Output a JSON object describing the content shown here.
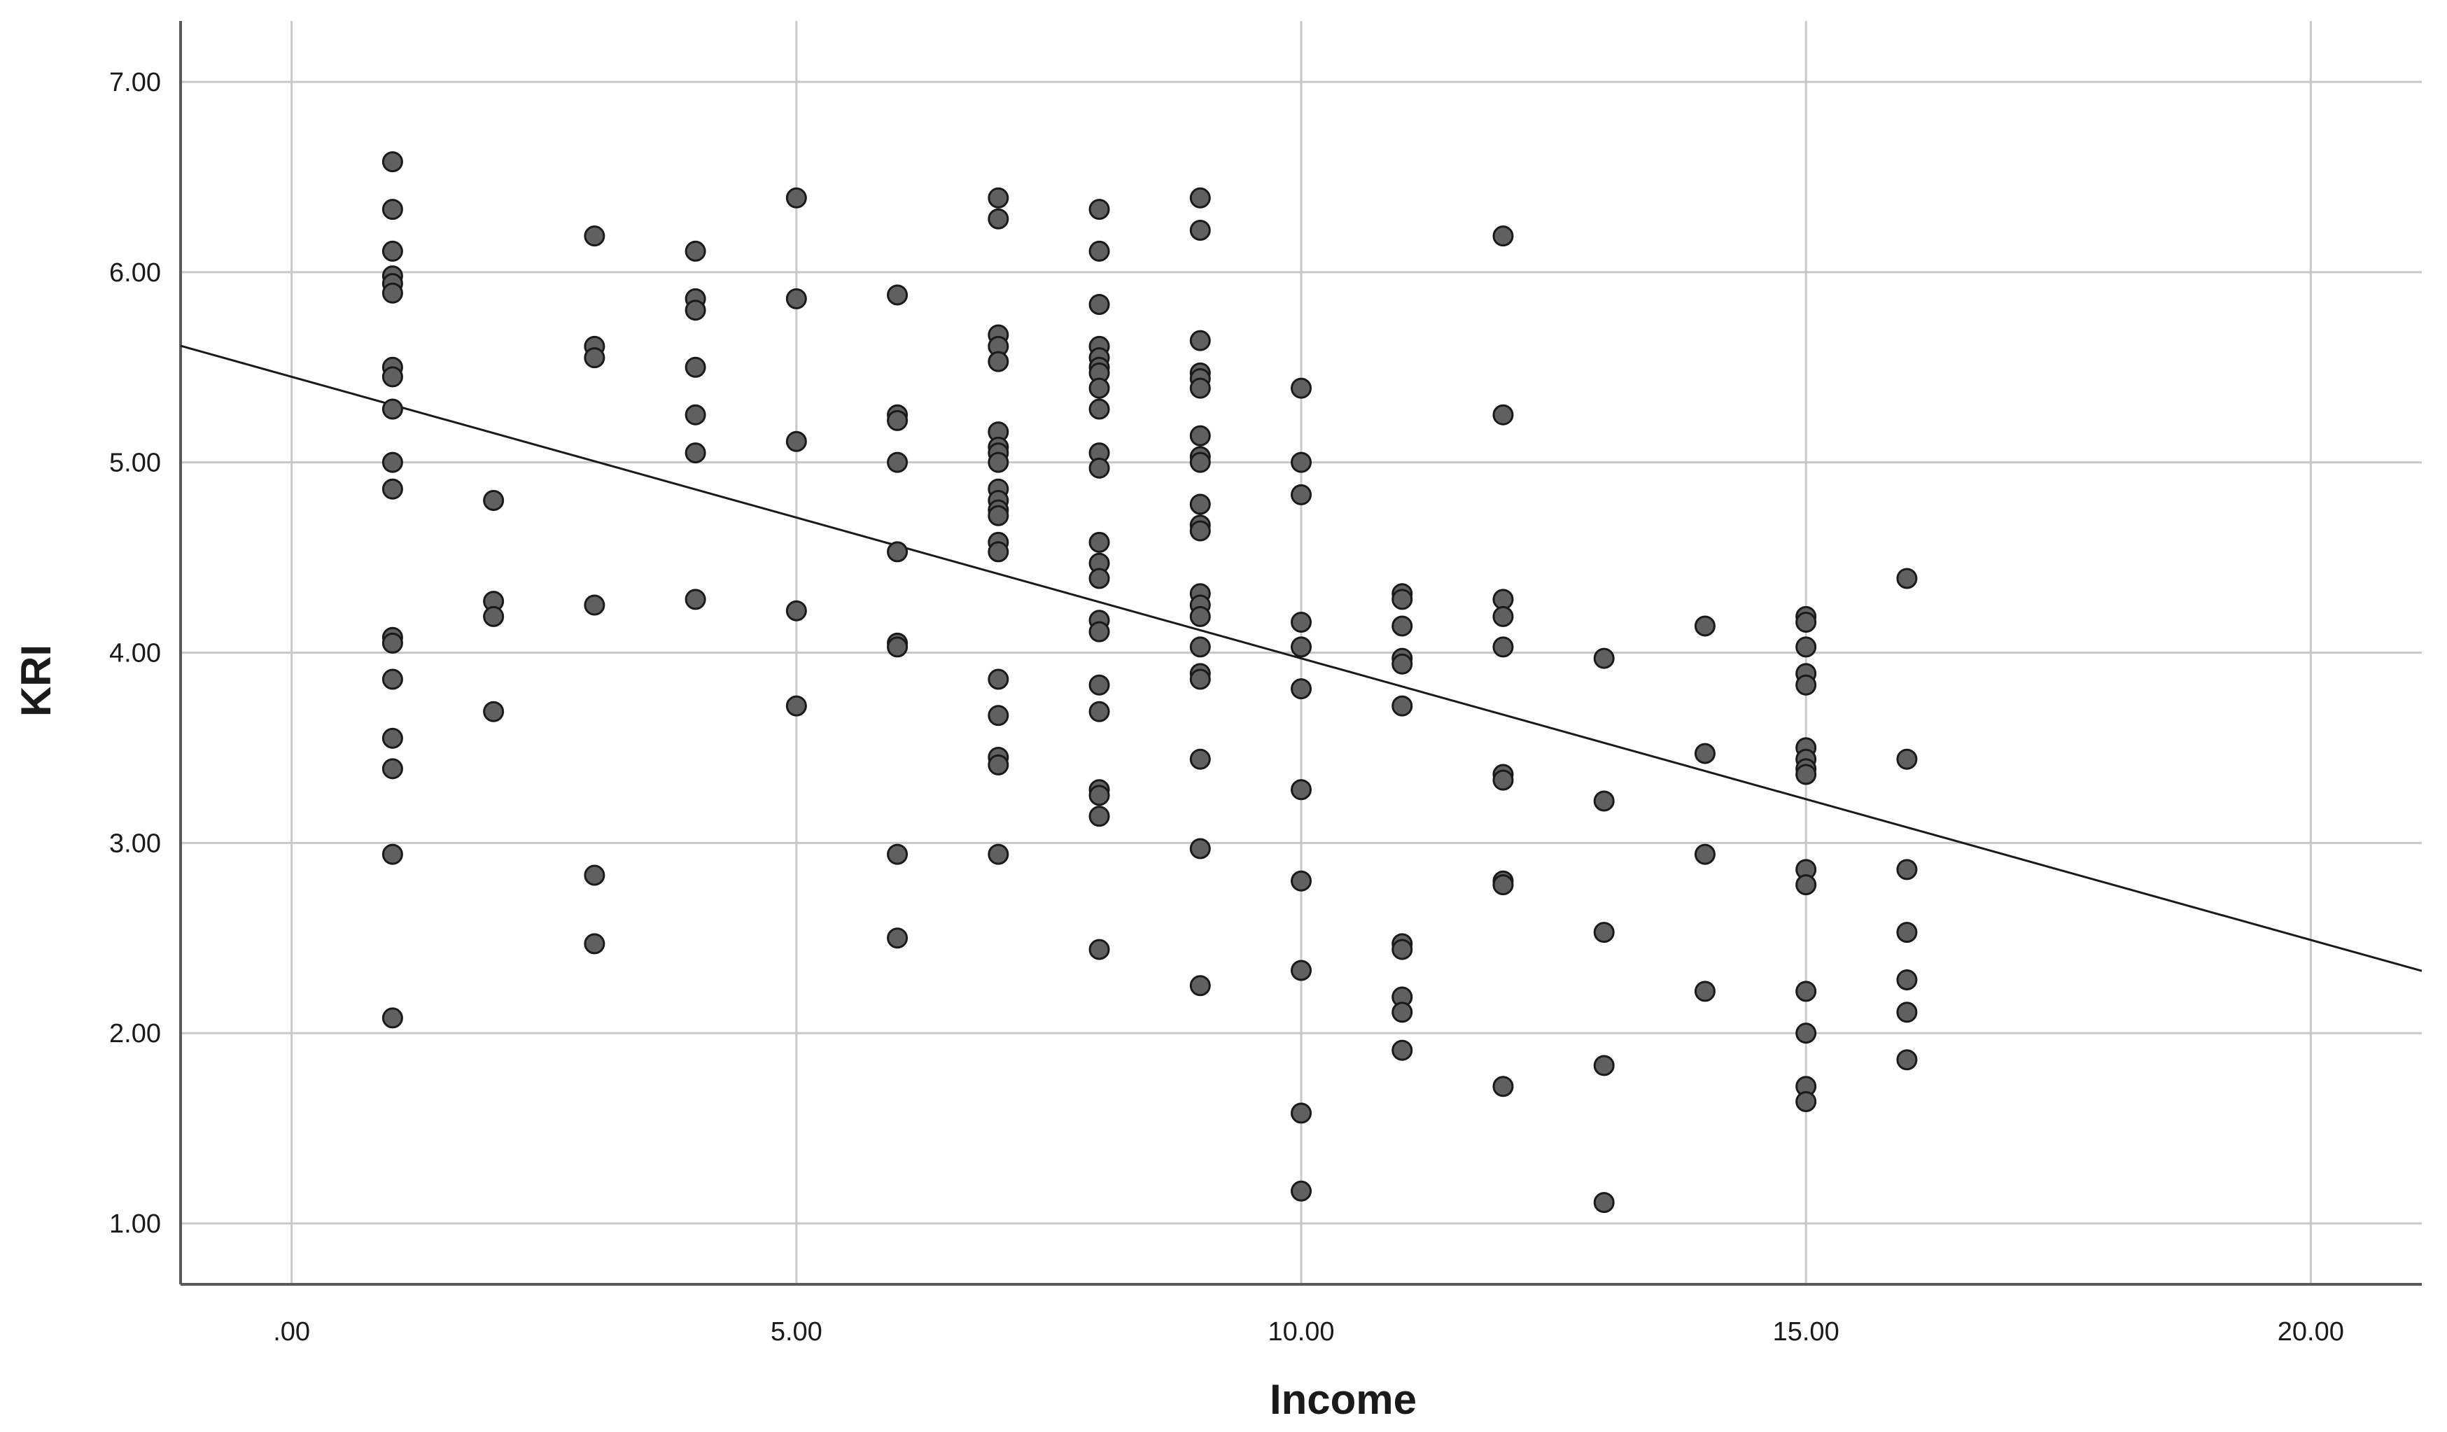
{
  "chart_data": {
    "type": "scatter",
    "title": "",
    "xlabel": "Income",
    "ylabel": "KRI",
    "xlim": [
      -1.1,
      21.1
    ],
    "ylim": [
      0.68,
      7.32
    ],
    "grid": true,
    "x_ticks": [
      {
        "value": 0,
        "label": ".00"
      },
      {
        "value": 5,
        "label": "5.00"
      },
      {
        "value": 10,
        "label": "10.00"
      },
      {
        "value": 15,
        "label": "15.00"
      },
      {
        "value": 20,
        "label": "20.00"
      }
    ],
    "y_ticks": [
      {
        "value": 1,
        "label": "1.00"
      },
      {
        "value": 2,
        "label": "2.00"
      },
      {
        "value": 3,
        "label": "3.00"
      },
      {
        "value": 4,
        "label": "4.00"
      },
      {
        "value": 5,
        "label": "5.00"
      },
      {
        "value": 6,
        "label": "6.00"
      },
      {
        "value": 7,
        "label": "7.00"
      }
    ],
    "fit_line": {
      "intercept": 5.45,
      "slope": -0.148
    },
    "point_color": "#606060",
    "point_edge_color": "#1a1a1a",
    "line_color": "#1a1a1a",
    "grid_color": "#c8c8c8",
    "axis_color": "#595959",
    "points": [
      [
        1,
        6.58
      ],
      [
        1,
        6.33
      ],
      [
        1,
        6.11
      ],
      [
        1,
        5.98
      ],
      [
        1,
        5.94
      ],
      [
        1,
        5.89
      ],
      [
        1,
        5.5
      ],
      [
        1,
        5.45
      ],
      [
        1,
        5.28
      ],
      [
        1,
        5.0
      ],
      [
        1,
        4.86
      ],
      [
        1,
        4.08
      ],
      [
        1,
        4.05
      ],
      [
        1,
        3.86
      ],
      [
        1,
        3.55
      ],
      [
        1,
        3.39
      ],
      [
        1,
        2.94
      ],
      [
        1,
        2.08
      ],
      [
        2,
        4.8
      ],
      [
        2,
        4.27
      ],
      [
        2,
        4.19
      ],
      [
        2,
        3.69
      ],
      [
        3,
        6.19
      ],
      [
        3,
        5.61
      ],
      [
        3,
        5.55
      ],
      [
        3,
        4.25
      ],
      [
        3,
        2.83
      ],
      [
        3,
        2.47
      ],
      [
        4,
        6.11
      ],
      [
        4,
        5.86
      ],
      [
        4,
        5.8
      ],
      [
        4,
        5.5
      ],
      [
        4,
        5.25
      ],
      [
        4,
        5.05
      ],
      [
        4,
        4.28
      ],
      [
        5,
        6.39
      ],
      [
        5,
        5.86
      ],
      [
        5,
        5.11
      ],
      [
        5,
        4.22
      ],
      [
        5,
        3.72
      ],
      [
        6,
        5.88
      ],
      [
        6,
        5.25
      ],
      [
        6,
        5.22
      ],
      [
        6,
        5.0
      ],
      [
        6,
        4.53
      ],
      [
        6,
        4.05
      ],
      [
        6,
        4.03
      ],
      [
        6,
        2.94
      ],
      [
        6,
        2.5
      ],
      [
        7,
        6.39
      ],
      [
        7,
        6.28
      ],
      [
        7,
        5.67
      ],
      [
        7,
        5.61
      ],
      [
        7,
        5.53
      ],
      [
        7,
        5.16
      ],
      [
        7,
        5.08
      ],
      [
        7,
        5.05
      ],
      [
        7,
        5.0
      ],
      [
        7,
        4.86
      ],
      [
        7,
        4.8
      ],
      [
        7,
        4.75
      ],
      [
        7,
        4.72
      ],
      [
        7,
        4.58
      ],
      [
        7,
        4.53
      ],
      [
        7,
        3.86
      ],
      [
        7,
        3.67
      ],
      [
        7,
        3.45
      ],
      [
        7,
        3.41
      ],
      [
        7,
        2.94
      ],
      [
        8,
        6.33
      ],
      [
        8,
        6.11
      ],
      [
        8,
        5.83
      ],
      [
        8,
        5.61
      ],
      [
        8,
        5.55
      ],
      [
        8,
        5.5
      ],
      [
        8,
        5.47
      ],
      [
        8,
        5.39
      ],
      [
        8,
        5.28
      ],
      [
        8,
        5.05
      ],
      [
        8,
        4.97
      ],
      [
        8,
        4.58
      ],
      [
        8,
        4.47
      ],
      [
        8,
        4.39
      ],
      [
        8,
        4.17
      ],
      [
        8,
        4.11
      ],
      [
        8,
        3.83
      ],
      [
        8,
        3.69
      ],
      [
        8,
        3.28
      ],
      [
        8,
        3.25
      ],
      [
        8,
        3.14
      ],
      [
        8,
        2.44
      ],
      [
        9,
        6.39
      ],
      [
        9,
        6.22
      ],
      [
        9,
        5.64
      ],
      [
        9,
        5.47
      ],
      [
        9,
        5.44
      ],
      [
        9,
        5.39
      ],
      [
        9,
        5.14
      ],
      [
        9,
        5.03
      ],
      [
        9,
        5.0
      ],
      [
        9,
        4.78
      ],
      [
        9,
        4.67
      ],
      [
        9,
        4.64
      ],
      [
        9,
        4.31
      ],
      [
        9,
        4.25
      ],
      [
        9,
        4.19
      ],
      [
        9,
        4.03
      ],
      [
        9,
        3.89
      ],
      [
        9,
        3.86
      ],
      [
        9,
        3.44
      ],
      [
        9,
        2.97
      ],
      [
        9,
        2.25
      ],
      [
        10,
        5.39
      ],
      [
        10,
        5.0
      ],
      [
        10,
        4.83
      ],
      [
        10,
        4.16
      ],
      [
        10,
        4.03
      ],
      [
        10,
        3.81
      ],
      [
        10,
        3.28
      ],
      [
        10,
        2.8
      ],
      [
        10,
        2.33
      ],
      [
        10,
        1.58
      ],
      [
        10,
        1.17
      ],
      [
        11,
        4.31
      ],
      [
        11,
        4.28
      ],
      [
        11,
        4.14
      ],
      [
        11,
        3.97
      ],
      [
        11,
        3.94
      ],
      [
        11,
        3.72
      ],
      [
        11,
        2.47
      ],
      [
        11,
        2.44
      ],
      [
        11,
        2.19
      ],
      [
        11,
        2.11
      ],
      [
        11,
        1.91
      ],
      [
        12,
        6.19
      ],
      [
        12,
        5.25
      ],
      [
        12,
        4.28
      ],
      [
        12,
        4.19
      ],
      [
        12,
        4.03
      ],
      [
        12,
        3.36
      ],
      [
        12,
        3.33
      ],
      [
        12,
        2.8
      ],
      [
        12,
        2.78
      ],
      [
        12,
        1.72
      ],
      [
        13,
        3.97
      ],
      [
        13,
        3.22
      ],
      [
        13,
        2.53
      ],
      [
        13,
        1.83
      ],
      [
        13,
        1.11
      ],
      [
        14,
        4.14
      ],
      [
        14,
        3.47
      ],
      [
        14,
        2.94
      ],
      [
        14,
        2.22
      ],
      [
        15,
        4.19
      ],
      [
        15,
        4.16
      ],
      [
        15,
        4.03
      ],
      [
        15,
        3.89
      ],
      [
        15,
        3.83
      ],
      [
        15,
        3.5
      ],
      [
        15,
        3.44
      ],
      [
        15,
        3.39
      ],
      [
        15,
        3.36
      ],
      [
        15,
        2.86
      ],
      [
        15,
        2.78
      ],
      [
        15,
        2.22
      ],
      [
        15,
        2.0
      ],
      [
        15,
        1.72
      ],
      [
        15,
        1.64
      ],
      [
        16,
        4.39
      ],
      [
        16,
        3.44
      ],
      [
        16,
        2.86
      ],
      [
        16,
        2.53
      ],
      [
        16,
        2.28
      ],
      [
        16,
        2.11
      ],
      [
        16,
        1.86
      ]
    ]
  }
}
